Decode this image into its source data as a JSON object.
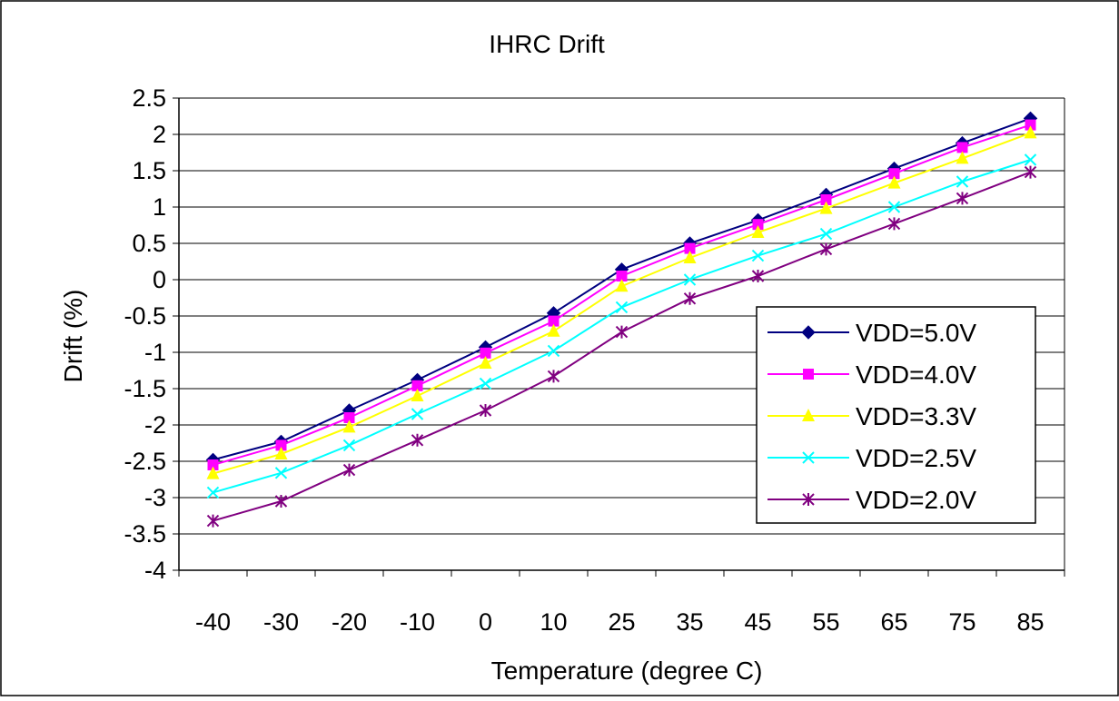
{
  "chart_data": {
    "type": "line",
    "title": "IHRC Drift",
    "xlabel": "Temperature (degree C)",
    "ylabel": "Drift (%)",
    "categories": [
      "-40",
      "-30",
      "-20",
      "-10",
      "0",
      "10",
      "25",
      "35",
      "45",
      "55",
      "65",
      "75",
      "85"
    ],
    "ylim": [
      -4,
      2.5
    ],
    "yticks": [
      "2.5",
      "2",
      "1.5",
      "1",
      "0.5",
      "0",
      "-0.5",
      "-1",
      "-1.5",
      "-2",
      "-2.5",
      "-3",
      "-3.5",
      "-4"
    ],
    "ytick_values": [
      2.5,
      2,
      1.5,
      1,
      0.5,
      0,
      -0.5,
      -1,
      -1.5,
      -2,
      -2.5,
      -3,
      -3.5,
      -4
    ],
    "grid": true,
    "legend_position": "right",
    "series": [
      {
        "name": "VDD=5.0V",
        "color": "#000080",
        "marker": "diamond",
        "values": [
          -2.48,
          -2.23,
          -1.8,
          -1.38,
          -0.93,
          -0.46,
          0.14,
          0.5,
          0.82,
          1.17,
          1.53,
          1.88,
          2.22
        ]
      },
      {
        "name": "VDD=4.0V",
        "color": "#FF00FF",
        "marker": "square",
        "values": [
          -2.55,
          -2.28,
          -1.9,
          -1.46,
          -1.01,
          -0.57,
          0.05,
          0.43,
          0.76,
          1.1,
          1.46,
          1.82,
          2.13
        ]
      },
      {
        "name": "VDD=3.3V",
        "color": "#FFFF00",
        "marker": "triangle",
        "values": [
          -2.67,
          -2.4,
          -2.03,
          -1.6,
          -1.15,
          -0.71,
          -0.09,
          0.3,
          0.65,
          0.98,
          1.33,
          1.67,
          2.02
        ]
      },
      {
        "name": "VDD=2.5V",
        "color": "#00FFFF",
        "marker": "x",
        "values": [
          -2.93,
          -2.66,
          -2.28,
          -1.85,
          -1.43,
          -0.98,
          -0.38,
          0.0,
          0.33,
          0.63,
          1.0,
          1.35,
          1.65
        ]
      },
      {
        "name": "VDD=2.0V",
        "color": "#800080",
        "marker": "star",
        "values": [
          -3.32,
          -3.05,
          -2.62,
          -2.21,
          -1.8,
          -1.33,
          -0.72,
          -0.26,
          0.05,
          0.42,
          0.77,
          1.12,
          1.48
        ]
      }
    ]
  }
}
